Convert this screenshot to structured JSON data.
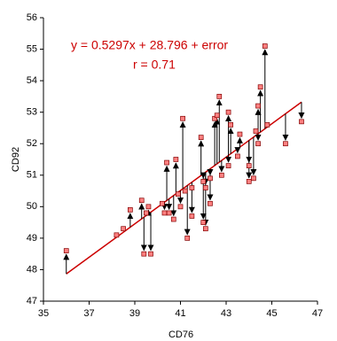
{
  "chart_data": {
    "type": "scatter",
    "annotations": [
      "y = 0.5297x + 28.796 + error",
      "r = 0.71"
    ],
    "x_label": "CD76",
    "y_label": "CD92",
    "x": [
      36.0,
      38.2,
      38.5,
      38.8,
      39.3,
      39.4,
      39.5,
      39.7,
      39.6,
      40.2,
      40.3,
      40.4,
      40.5,
      40.7,
      40.8,
      40.9,
      41.0,
      41.1,
      41.2,
      41.3,
      41.5,
      41.5,
      41.9,
      42.0,
      42.0,
      42.1,
      42.1,
      42.3,
      42.3,
      42.5,
      42.6,
      42.7,
      42.8,
      43.1,
      43.1,
      43.2,
      43.5,
      43.6,
      44.0,
      44.0,
      44.2,
      44.3,
      44.4,
      44.5,
      44.4,
      44.7,
      44.8,
      45.6,
      46.3
    ],
    "y": [
      48.6,
      49.1,
      49.3,
      49.9,
      50.2,
      48.5,
      49.8,
      48.5,
      50.0,
      50.1,
      49.8,
      51.4,
      49.8,
      49.6,
      51.5,
      50.4,
      50.0,
      52.8,
      50.5,
      49.0,
      50.6,
      49.7,
      52.2,
      50.8,
      49.5,
      49.3,
      50.6,
      50.1,
      50.9,
      52.8,
      52.9,
      53.5,
      51.0,
      51.3,
      53.0,
      52.6,
      51.6,
      52.3,
      50.8,
      51.3,
      50.9,
      52.4,
      52.0,
      53.8,
      53.2,
      55.1,
      52.6,
      52.0,
      52.7
    ],
    "fit": {
      "slope": 0.5297,
      "intercept": 28.796
    },
    "xlim": [
      35,
      47
    ],
    "ylim": [
      47,
      56
    ],
    "xticks": [
      35,
      37,
      39,
      41,
      43,
      45,
      47
    ],
    "yticks": [
      47,
      48,
      49,
      50,
      51,
      52,
      53,
      54,
      55,
      56
    ],
    "point_color": "#ff8080",
    "line_color": "#cc0000",
    "arrow_color": "#000000"
  }
}
